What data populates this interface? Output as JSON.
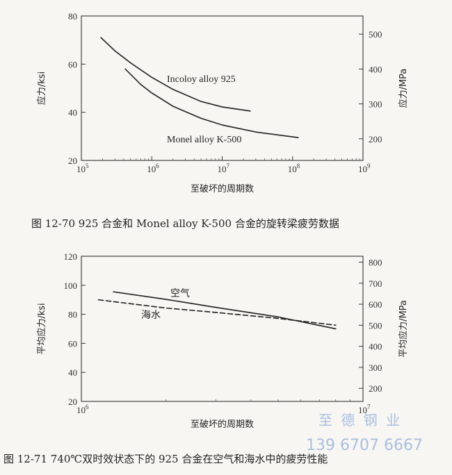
{
  "chart_data": [
    {
      "type": "line",
      "caption": "图 12-70   925 合金和 Monel alloy K-500 合金的旋转梁疲劳数据",
      "xlabel": "至破坏的周期数",
      "ylabel": "应力/ksi",
      "y2label": "应力/MPa",
      "x_scale": "log",
      "xlim": [
        100000,
        1000000000
      ],
      "ylim": [
        20,
        80
      ],
      "y2lim": [
        138,
        552
      ],
      "x_ticks": [
        {
          "base": "10",
          "exp": "5",
          "value": 100000
        },
        {
          "base": "10",
          "exp": "6",
          "value": 1000000
        },
        {
          "base": "10",
          "exp": "7",
          "value": 10000000
        },
        {
          "base": "10",
          "exp": "8",
          "value": 100000000
        },
        {
          "base": "10",
          "exp": "9",
          "value": 1000000000
        }
      ],
      "y_ticks": [
        "20",
        "40",
        "60",
        "80"
      ],
      "y2_ticks": [
        "200",
        "300",
        "400",
        "500"
      ],
      "grid": false,
      "series": [
        {
          "name": "Incoloy alloy 925",
          "x": [
            190000,
            300000,
            500000,
            1000000,
            2000000,
            5000000,
            10000000,
            25000000
          ],
          "y": [
            71,
            65.5,
            60.5,
            54.5,
            49.5,
            44.5,
            42.2,
            40.5
          ],
          "dash": false
        },
        {
          "name": "Monel alloy K-500",
          "x": [
            420000,
            700000,
            1000000,
            2000000,
            5000000,
            10000000,
            30000000,
            120000000
          ],
          "y": [
            58,
            51.5,
            48,
            42.5,
            37.5,
            34.7,
            31.8,
            29.5
          ],
          "dash": false
        }
      ]
    },
    {
      "type": "line",
      "caption": "图 12-71   740℃双时效状态下的 925 合金在空气和海水中的疲劳性能",
      "xlabel": "至破坏的周期数",
      "ylabel": "平均应力/ksi",
      "y2label": "平均应力/MPa",
      "x_scale": "log",
      "xlim": [
        1000000,
        10000000
      ],
      "ylim": [
        20,
        120
      ],
      "y2lim": [
        138,
        828
      ],
      "x_ticks": [
        {
          "base": "10",
          "exp": "6",
          "value": 1000000
        },
        {
          "base": "10",
          "exp": "7",
          "value": 10000000
        }
      ],
      "y_ticks": [
        "20",
        "40",
        "60",
        "80",
        "100",
        "120"
      ],
      "y2_ticks": [
        "200",
        "300",
        "400",
        "500",
        "600",
        "700",
        "800"
      ],
      "grid": false,
      "series": [
        {
          "name": "空气",
          "x": [
            1300000,
            2000000,
            3000000,
            5000000,
            8000000
          ],
          "y": [
            95.5,
            90.3,
            84.8,
            78.2,
            70
          ],
          "dash": false
        },
        {
          "name": "海水",
          "x": [
            1150000,
            2000000,
            3000000,
            5000000,
            8000000
          ],
          "y": [
            90,
            84.3,
            81.3,
            77.2,
            72.5
          ],
          "dash": true
        }
      ]
    }
  ],
  "watermark": {
    "line1": "至 德 钢 业",
    "line2": "139 6707 6667",
    "color": "#a9bfe2"
  }
}
